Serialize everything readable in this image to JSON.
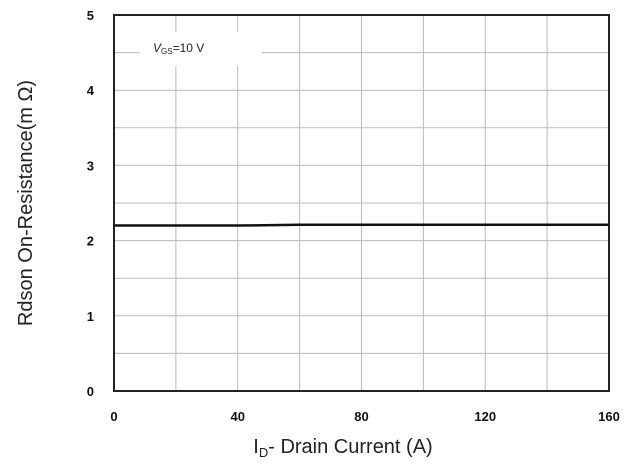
{
  "chart_data": {
    "type": "line",
    "title": "",
    "xlabel": {
      "main": "I",
      "sub": "D",
      "rest": "- Drain Current (A)"
    },
    "ylabel": "Rdson On-Resistance(m Ω)",
    "xlim": [
      0,
      160
    ],
    "ylim": [
      0,
      5
    ],
    "x_ticks": [
      "0",
      "40",
      "80",
      "120",
      "160"
    ],
    "y_ticks": [
      "0",
      "1",
      "2",
      "3",
      "4",
      "5"
    ],
    "x_grid": [
      0,
      20,
      40,
      60,
      80,
      100,
      120,
      140,
      160
    ],
    "y_grid": [
      0,
      0.5,
      1,
      1.5,
      2,
      2.5,
      3,
      3.5,
      4,
      4.5,
      5
    ],
    "grid": true,
    "annotation": {
      "main": "V",
      "sub": "GS",
      "rest": "=10 V"
    },
    "series": [
      {
        "x": [
          0,
          20,
          40,
          60,
          80,
          100,
          120,
          140,
          160
        ],
        "y": [
          2.2,
          2.2,
          2.2,
          2.21,
          2.21,
          2.21,
          2.21,
          2.21,
          2.21
        ]
      }
    ]
  }
}
